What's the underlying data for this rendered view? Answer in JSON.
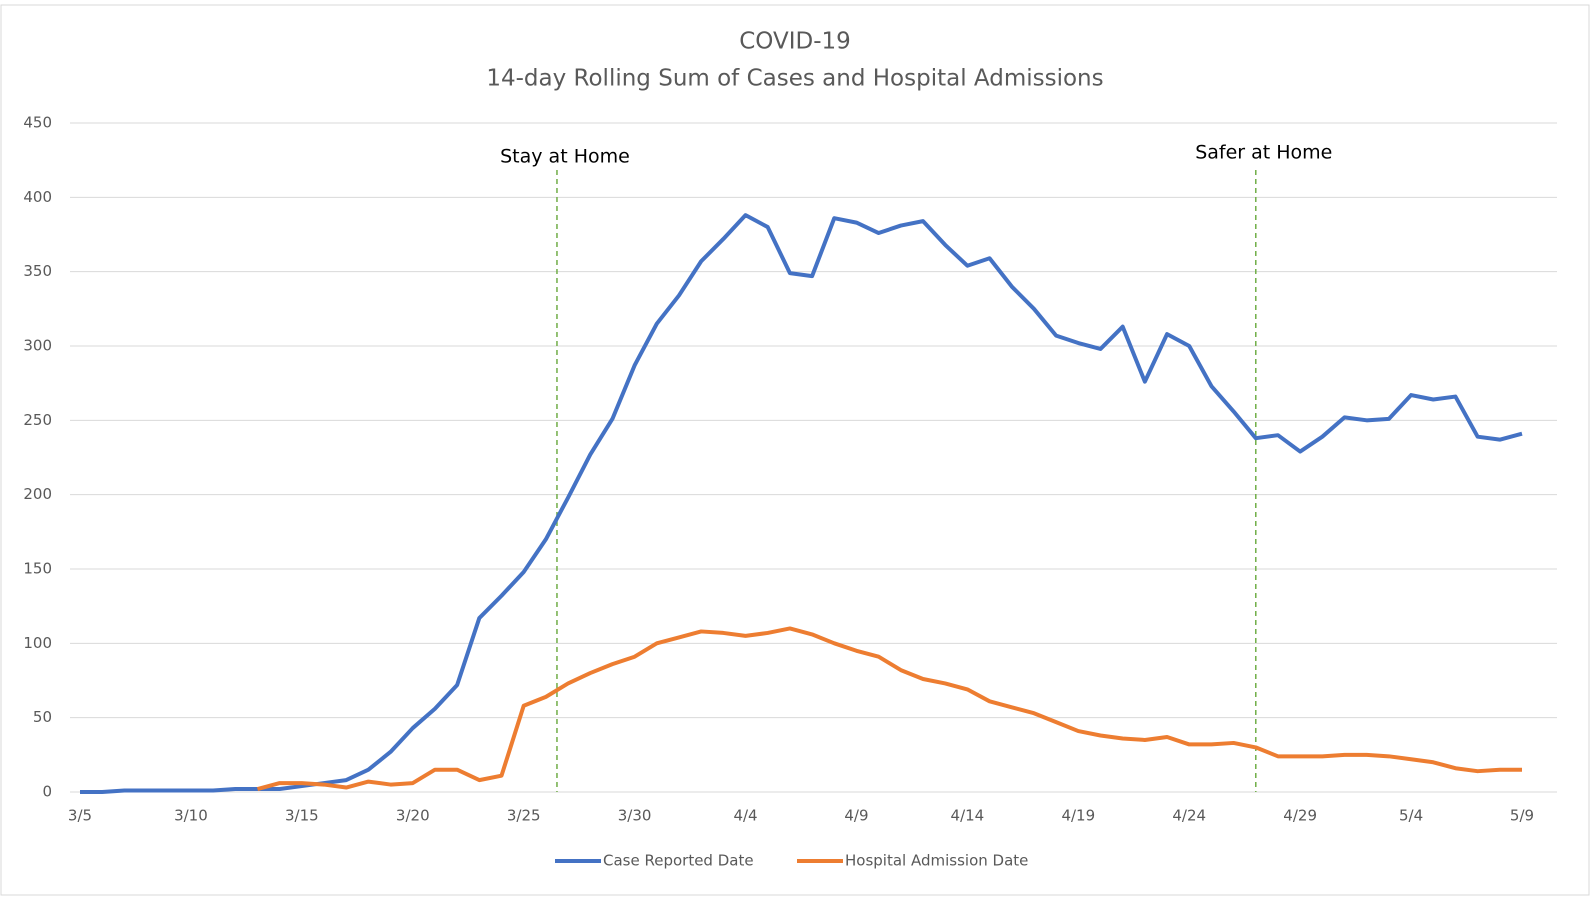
{
  "chart_data": {
    "type": "line",
    "title": "COVID-19",
    "subtitle": "14-day Rolling Sum of Cases and Hospital Admissions",
    "categories": [
      "3/5",
      null,
      null,
      null,
      null,
      "3/10",
      null,
      null,
      null,
      null,
      "3/15",
      null,
      null,
      null,
      null,
      "3/20",
      null,
      null,
      null,
      null,
      "3/25",
      null,
      null,
      null,
      null,
      "3/30",
      null,
      null,
      null,
      null,
      "4/4",
      null,
      null,
      null,
      null,
      "4/9",
      null,
      null,
      null,
      null,
      "4/14",
      null,
      null,
      null,
      null,
      "4/19",
      null,
      null,
      null,
      null,
      "4/24",
      null,
      null,
      null,
      null,
      "4/29",
      null,
      null,
      null,
      null,
      "5/4",
      null,
      null,
      null,
      null,
      "5/9"
    ],
    "series": [
      {
        "name": "Case Reported Date",
        "color": "#4472c4",
        "values": [
          0,
          0,
          1,
          1,
          1,
          1,
          1,
          2,
          2,
          2,
          4,
          6,
          8,
          15,
          27,
          43,
          56,
          72,
          117,
          132,
          148,
          170,
          198,
          227,
          251,
          287,
          315,
          334,
          357,
          372,
          388,
          380,
          349,
          347,
          386,
          383,
          376,
          381,
          384,
          368,
          354,
          359,
          340,
          325,
          307,
          302,
          298,
          313,
          276,
          308,
          300,
          273,
          256,
          238,
          240,
          229,
          239,
          252,
          250,
          251,
          267,
          264,
          266,
          239,
          237,
          241
        ]
      },
      {
        "name": "Hospital Admission Date",
        "color": "#ed7d31",
        "values": [
          null,
          null,
          null,
          null,
          null,
          null,
          null,
          null,
          2,
          6,
          6,
          5,
          3,
          7,
          5,
          6,
          15,
          15,
          8,
          11,
          58,
          64,
          73,
          80,
          86,
          91,
          100,
          104,
          108,
          107,
          105,
          107,
          110,
          106,
          100,
          95,
          91,
          82,
          76,
          73,
          69,
          61,
          57,
          53,
          47,
          41,
          38,
          36,
          35,
          37,
          32,
          32,
          33,
          30,
          24,
          24,
          24,
          25,
          25,
          24,
          22,
          20,
          16,
          14,
          15,
          15
        ]
      }
    ],
    "annotations": [
      {
        "text": "Stay at Home",
        "x": 21.5,
        "color": "#70ad47"
      },
      {
        "text": "Safer at Home",
        "x": 53,
        "color": "#70ad47"
      }
    ],
    "ylim": [
      0,
      450
    ],
    "yticks": [
      0,
      50,
      100,
      150,
      200,
      250,
      300,
      350,
      400,
      450
    ],
    "grid": true,
    "legend": "bottom"
  }
}
